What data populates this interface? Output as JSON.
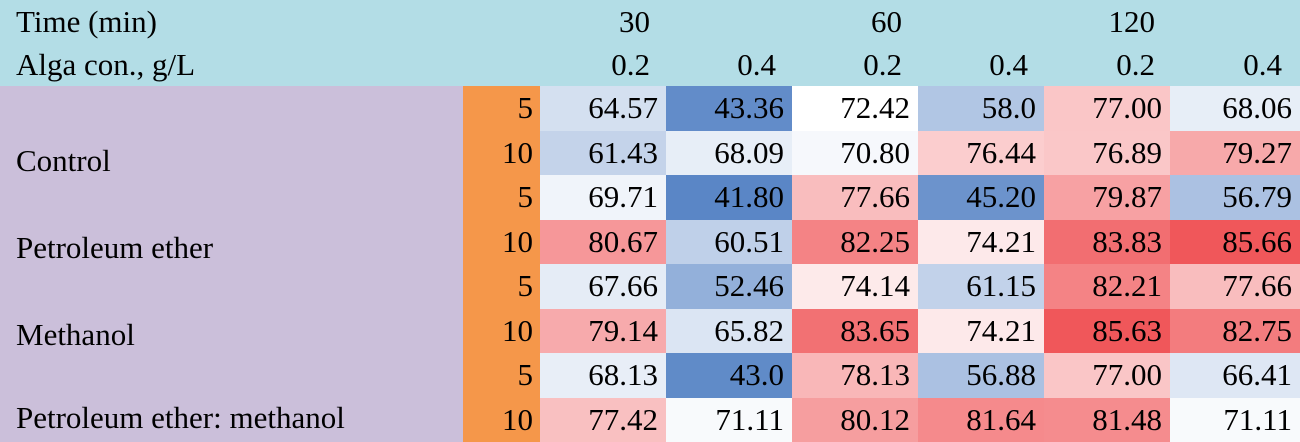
{
  "chart_data": {
    "type": "heatmap",
    "header": {
      "time_label": "Time (min)",
      "conc_label": "Alga con., g/L",
      "times": [
        "30",
        "60",
        "120"
      ],
      "concentrations": [
        "0.2",
        "0.4",
        "0.2",
        "0.4",
        "0.2",
        "0.4"
      ]
    },
    "methods": [
      "Control",
      "Petroleum  ether",
      "Methanol",
      "Petroleum ether: methanol"
    ],
    "rows": [
      {
        "dose": "5",
        "values": [
          "64.57",
          "43.36",
          "72.42",
          "58.0",
          "77.00",
          "68.06"
        ]
      },
      {
        "dose": "10",
        "values": [
          "61.43",
          "68.09",
          "70.80",
          "76.44",
          "76.89",
          "79.27"
        ]
      },
      {
        "dose": "5",
        "values": [
          "69.71",
          "41.80",
          "77.66",
          "45.20",
          "79.87",
          "56.79"
        ]
      },
      {
        "dose": "10",
        "values": [
          "80.67",
          "60.51",
          "82.25",
          "74.21",
          "83.83",
          "85.66"
        ]
      },
      {
        "dose": "5",
        "values": [
          "67.66",
          "52.46",
          "74.14",
          "61.15",
          "82.21",
          "77.66"
        ]
      },
      {
        "dose": "10",
        "values": [
          "79.14",
          "65.82",
          "83.65",
          "74.21",
          "85.63",
          "82.75"
        ]
      },
      {
        "dose": "5",
        "values": [
          "68.13",
          "43.0",
          "78.13",
          "56.88",
          "77.00",
          "66.41"
        ]
      },
      {
        "dose": "10",
        "values": [
          "77.42",
          "71.11",
          "80.12",
          "81.64",
          "81.48",
          "71.11"
        ]
      }
    ],
    "color_scale": {
      "low_color": "#5a86c6",
      "mid_color": "#ffffff",
      "high_color": "#f0575a",
      "low_value": 41.8,
      "mid_value": 72.5,
      "high_value": 85.66
    },
    "header_color": "#b3dde6",
    "method_color": "#cbbfda",
    "dose_color": "#f5974a"
  }
}
